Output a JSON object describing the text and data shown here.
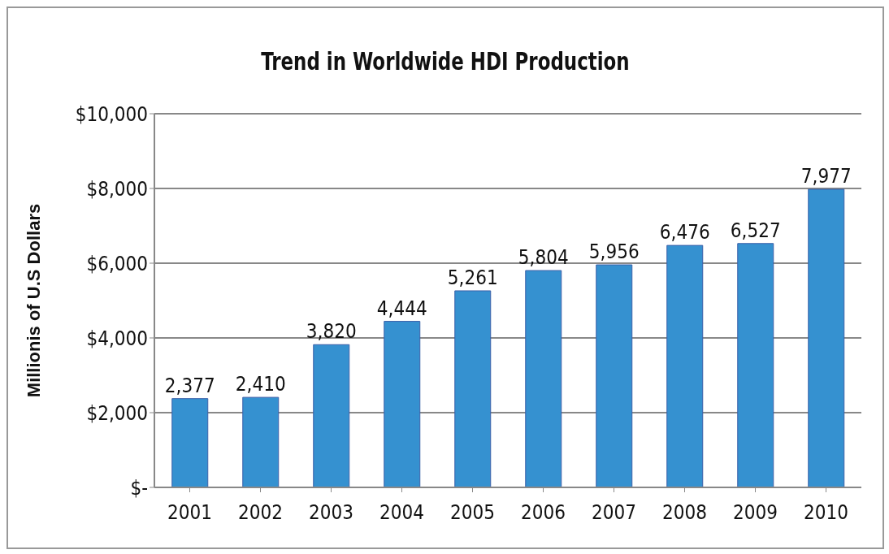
{
  "chart_data": {
    "type": "bar",
    "title": "Trend in Worldwide HDI Production",
    "ylabel": "Millionis of U.S Dollars",
    "categories": [
      "2001",
      "2002",
      "2003",
      "2004",
      "2005",
      "2006",
      "2007",
      "2008",
      "2009",
      "2010"
    ],
    "values": [
      2377,
      2410,
      3820,
      4444,
      5261,
      5804,
      5956,
      6476,
      6527,
      7977
    ],
    "value_labels": [
      "2,377",
      "2,410",
      "3,820",
      "4,444",
      "5,261",
      "5,804",
      "5,956",
      "6,476",
      "6,527",
      "7,977"
    ],
    "color": "#3591d0",
    "ylim": [
      0,
      10000
    ],
    "yticks": [
      {
        "value": 0,
        "label": "$-"
      },
      {
        "value": 2000,
        "label": "$2,000"
      },
      {
        "value": 4000,
        "label": "$4,000"
      },
      {
        "value": 6000,
        "label": "$6,000"
      },
      {
        "value": 8000,
        "label": "$8,000"
      },
      {
        "value": 10000,
        "label": "$10,000"
      }
    ],
    "grid": "y",
    "legend": false
  }
}
